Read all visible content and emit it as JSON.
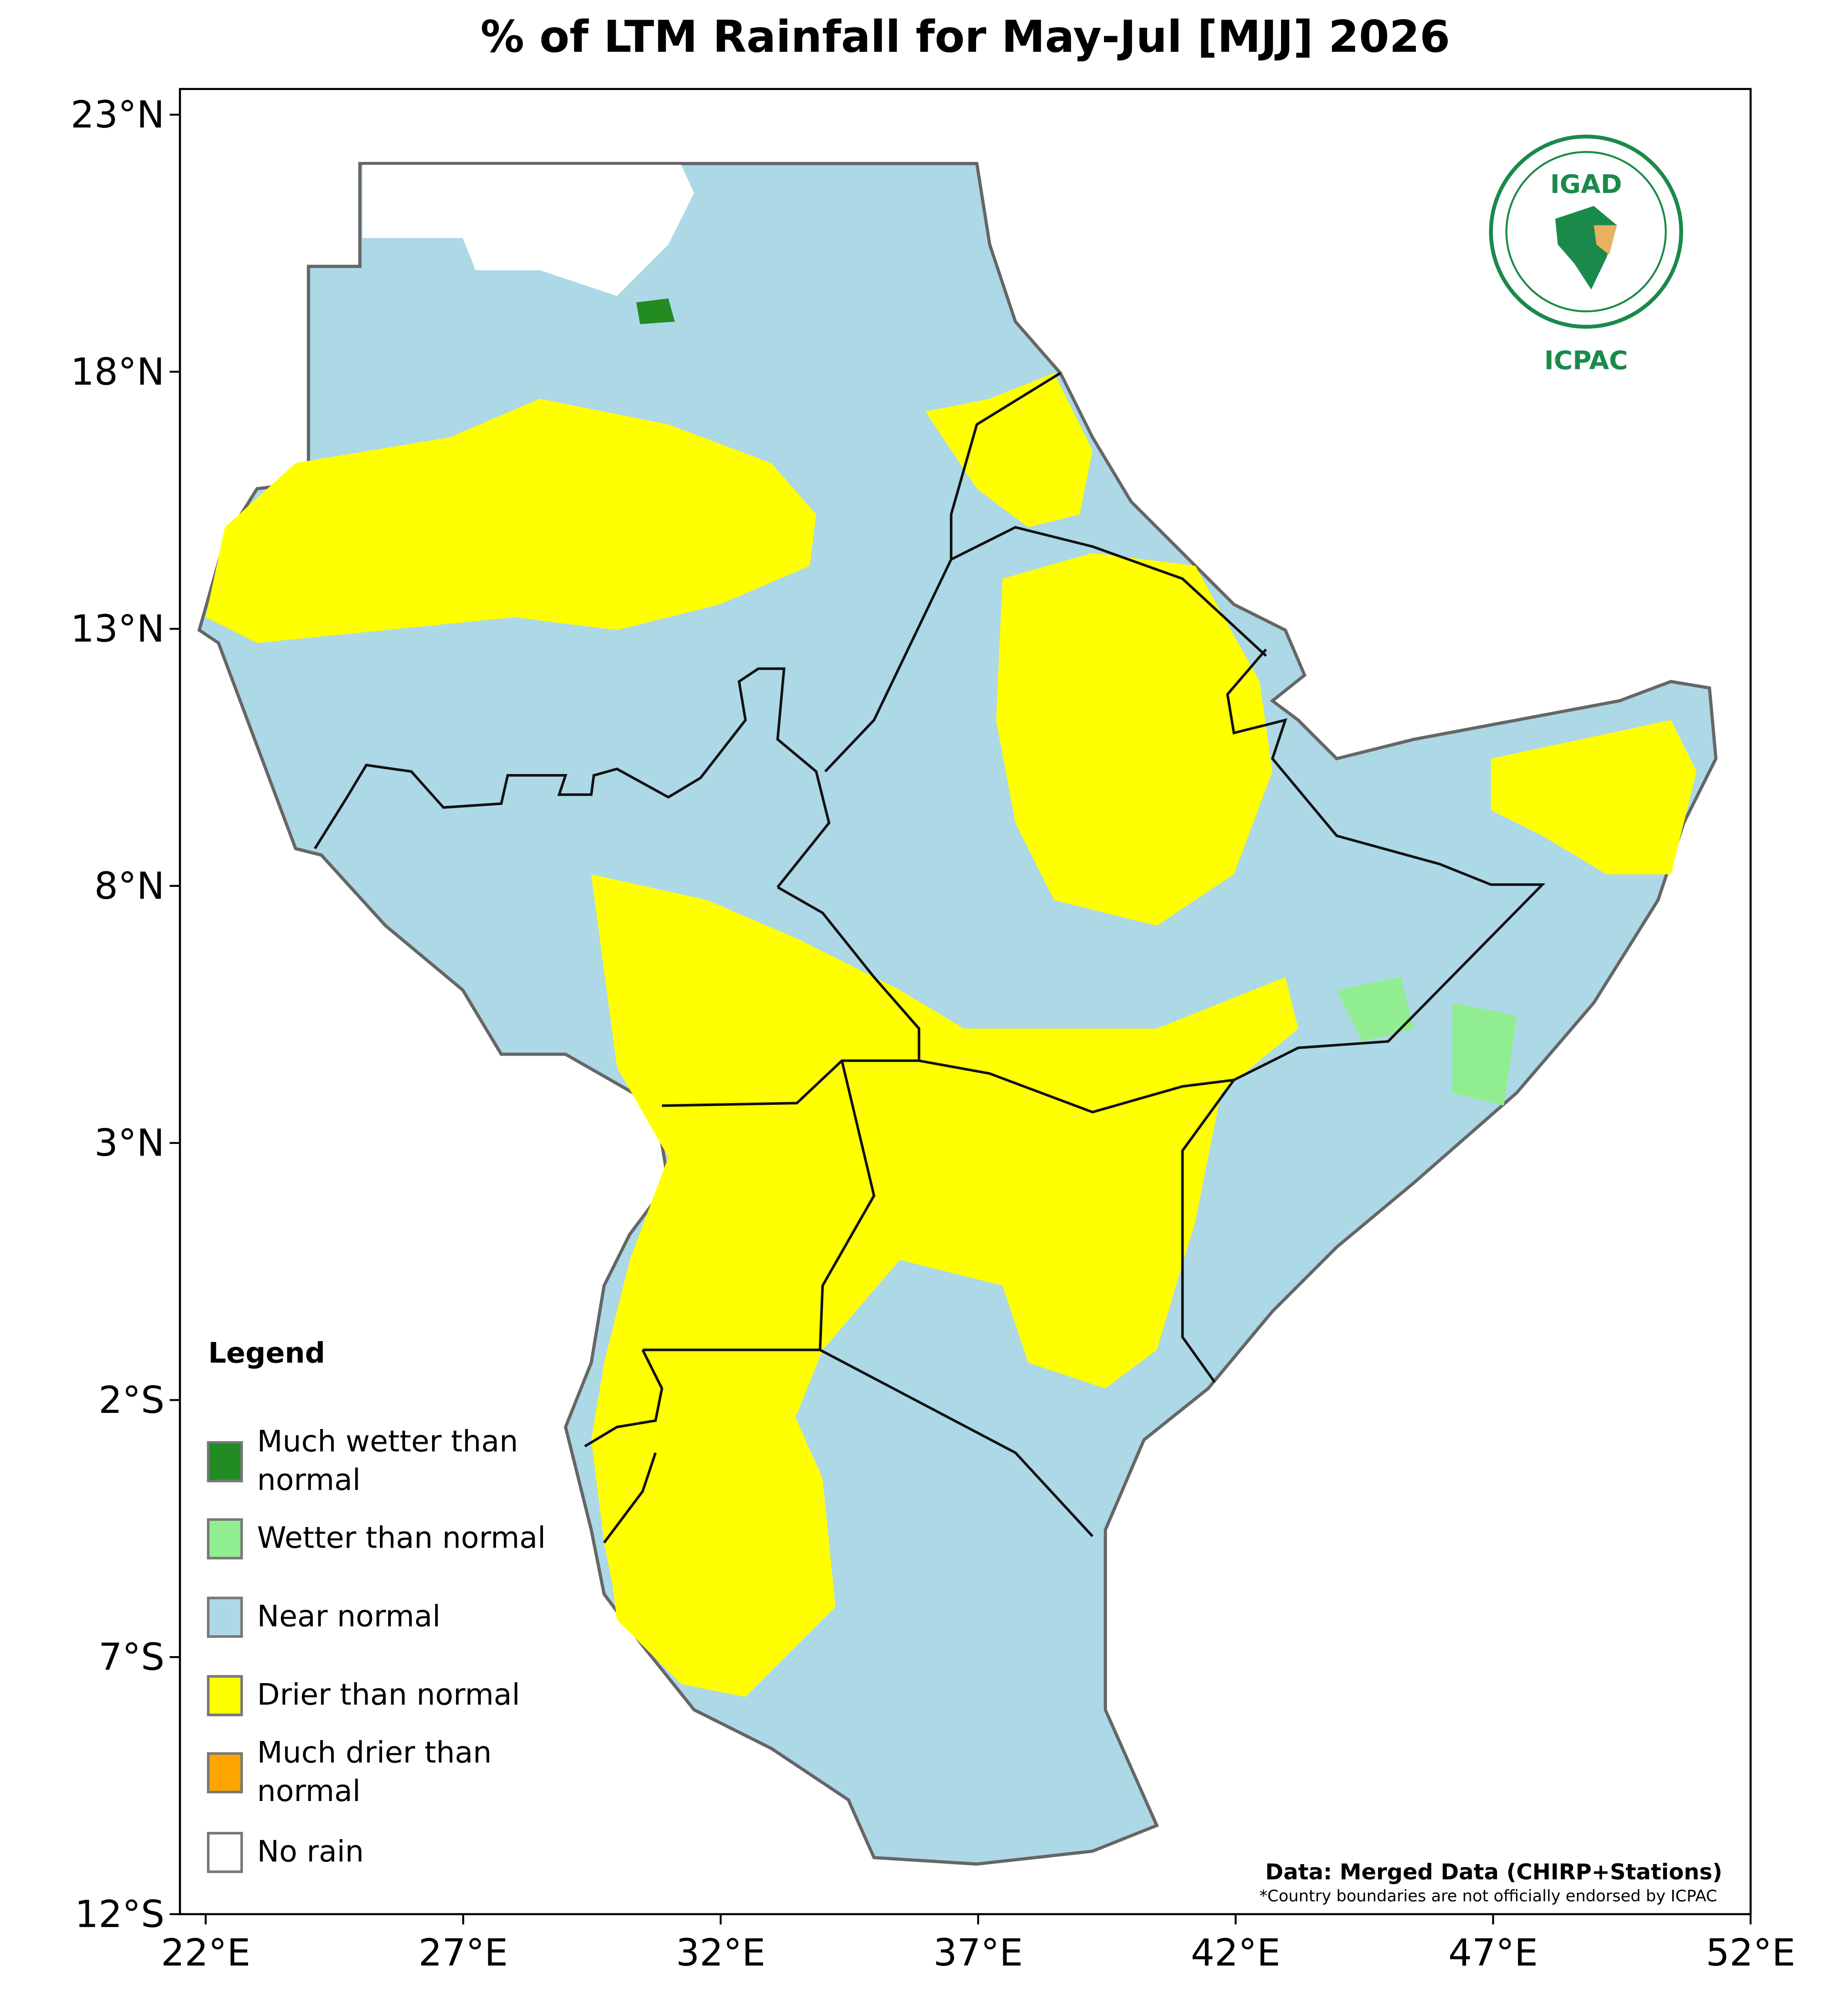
{
  "title": "% of LTM Rainfall for May-Jul [MJJ] 2026",
  "map": {
    "xlim": [
      21.5,
      52
    ],
    "ylim": [
      -12,
      23.5
    ],
    "xticks": [
      {
        "value": 22,
        "label": "22°E"
      },
      {
        "value": 27,
        "label": "27°E"
      },
      {
        "value": 32,
        "label": "32°E"
      },
      {
        "value": 37,
        "label": "37°E"
      },
      {
        "value": 42,
        "label": "42°E"
      },
      {
        "value": 47,
        "label": "47°E"
      },
      {
        "value": 52,
        "label": "52°E"
      }
    ],
    "yticks": [
      {
        "value": 23,
        "label": "23°N"
      },
      {
        "value": 18,
        "label": "18°N"
      },
      {
        "value": 13,
        "label": "13°N"
      },
      {
        "value": 8,
        "label": "8°N"
      },
      {
        "value": 3,
        "label": "3°N"
      },
      {
        "value": -2,
        "label": "2°S"
      },
      {
        "value": -7,
        "label": "7°S"
      },
      {
        "value": -12,
        "label": "12°S"
      }
    ]
  },
  "legend": {
    "title": "Legend",
    "items": [
      {
        "label": "Much wetter than\nnormal",
        "color": "#228b22"
      },
      {
        "label": "Wetter than normal",
        "color": "#90ee90"
      },
      {
        "label": "Near normal",
        "color": "#add8e6"
      },
      {
        "label": "Drier than normal",
        "color": "#ffff00"
      },
      {
        "label": "Much drier than\nnormal",
        "color": "#ffa500"
      },
      {
        "label": "No rain",
        "color": "#ffffff"
      }
    ]
  },
  "logo": {
    "top": "IGAD",
    "bottom": "ICPAC"
  },
  "source": "Data: Merged Data (CHIRP+Stations)",
  "disclaimer": "*Country boundaries are not officially endorsed by ICPAC"
}
